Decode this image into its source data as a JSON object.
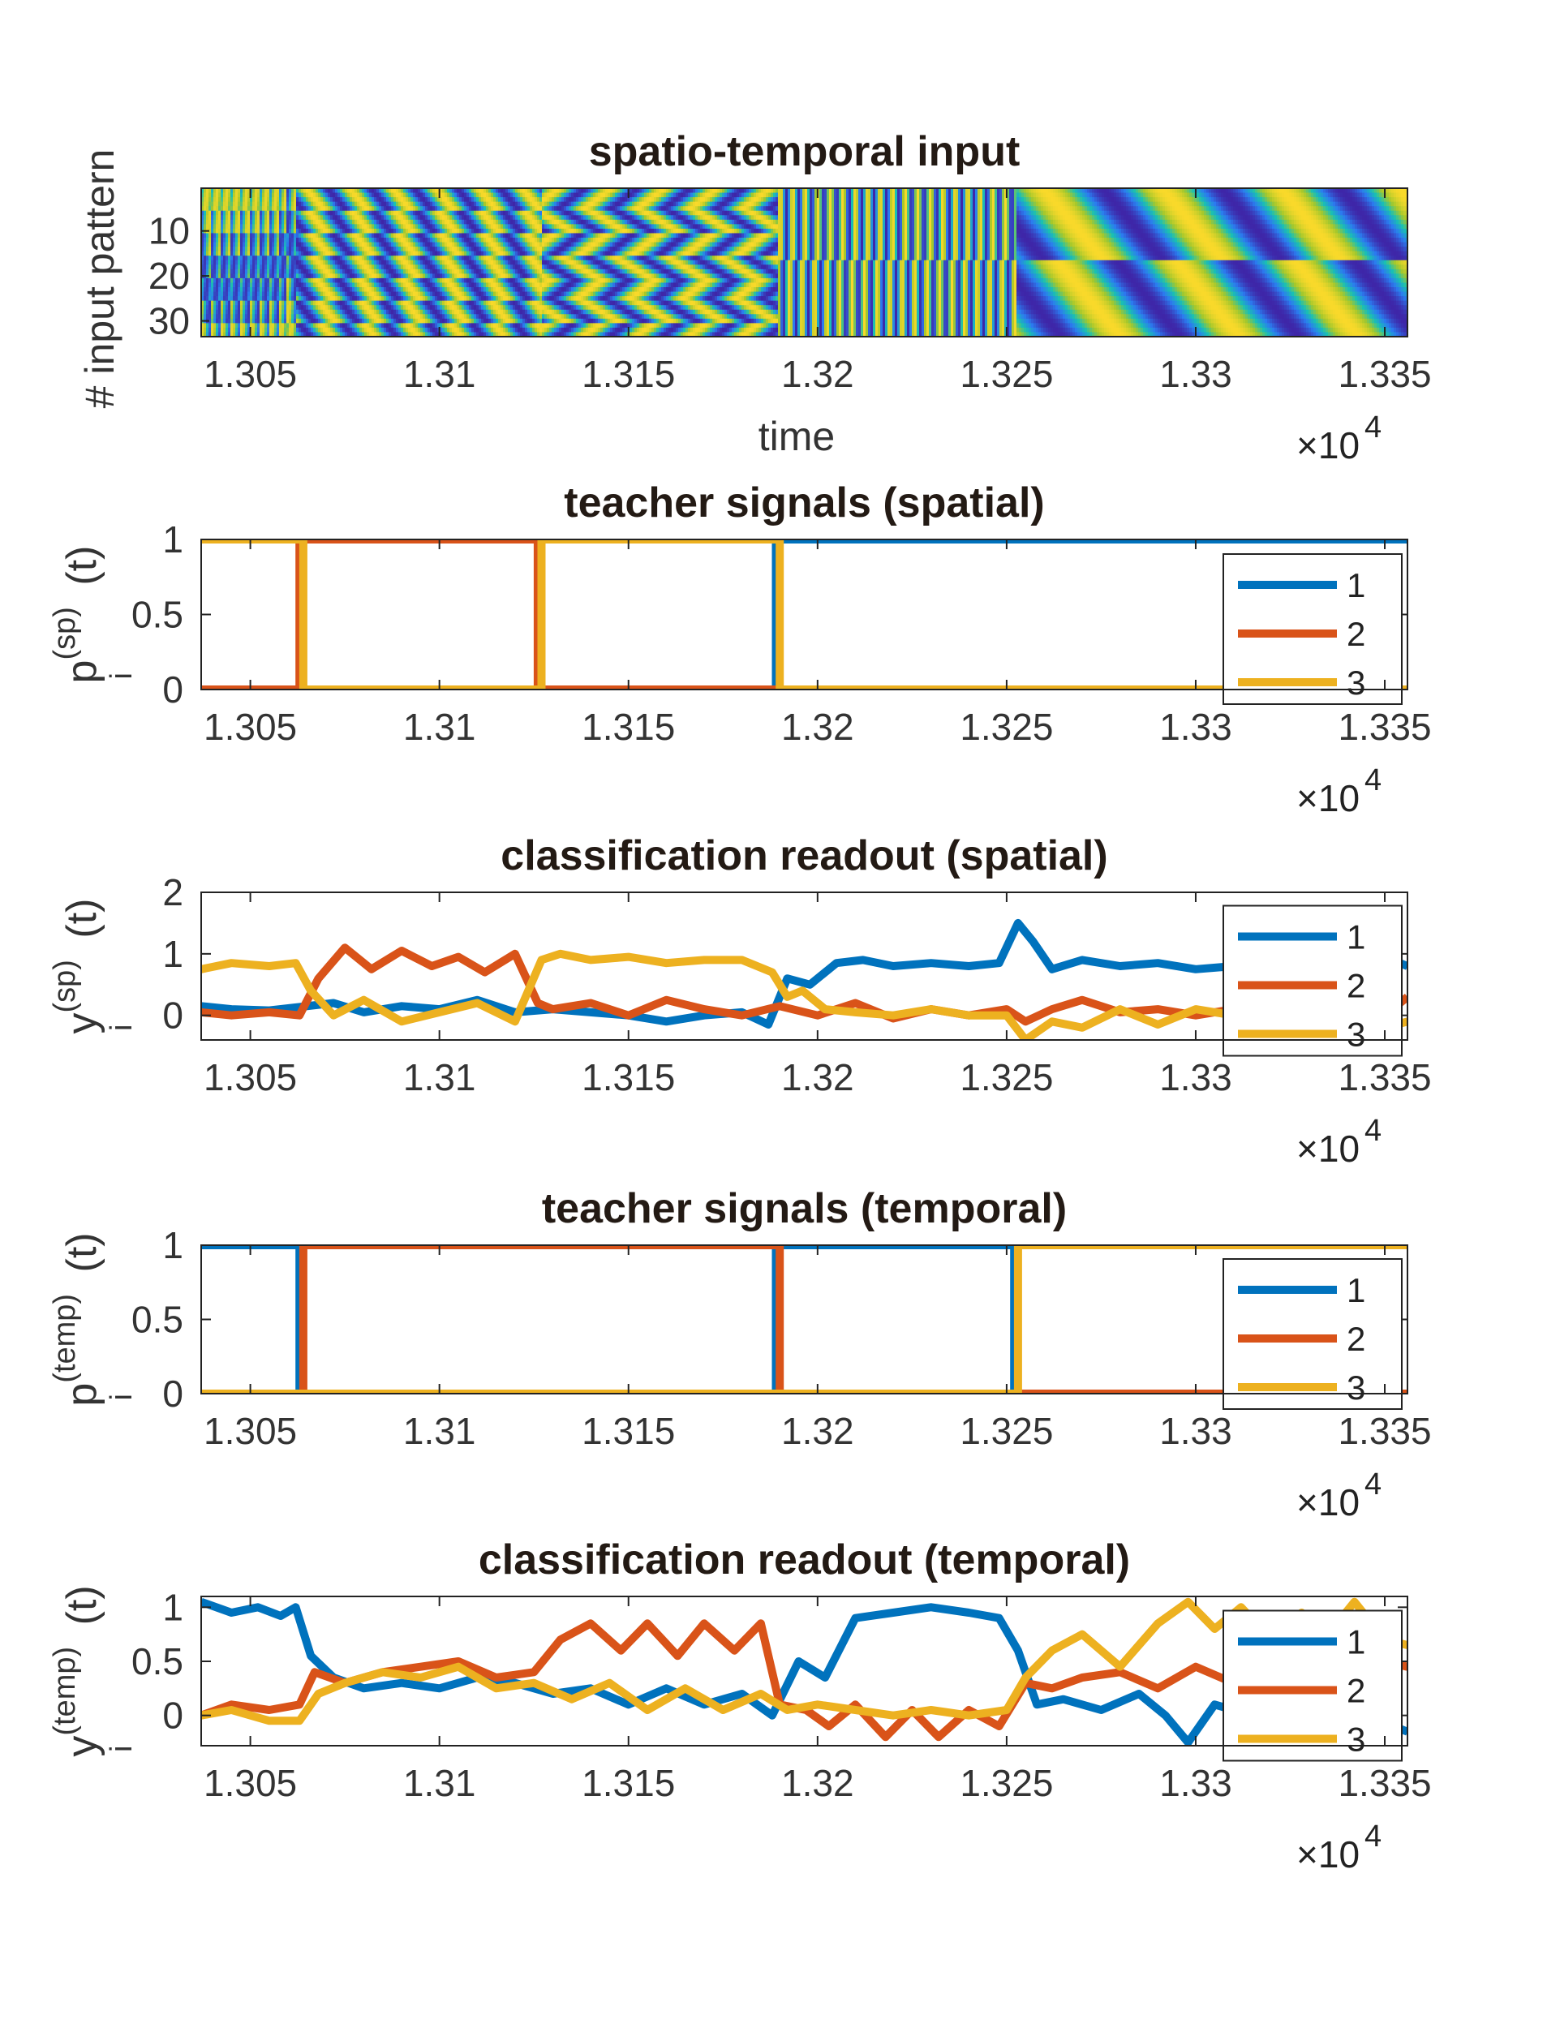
{
  "chart_data": [
    {
      "type": "heatmap",
      "title": "spatio-temporal input",
      "xlabel": "time",
      "ylabel": "# input pattern",
      "xlim": [
        1.3037,
        1.3356
      ],
      "ylim": [
        1,
        33
      ],
      "x_exponent": "4",
      "x_multiplier": "×10",
      "xticks": [
        "1.305",
        "1.31",
        "1.315",
        "1.32",
        "1.325",
        "1.33",
        "1.335"
      ],
      "yticks": [
        "10",
        "20",
        "30"
      ],
      "colormap": [
        "#3e26a8",
        "#2b7bf0",
        "#19c0b3",
        "#a6c82b",
        "#f9d92a"
      ],
      "segments": [
        {
          "start": 1.3037,
          "end": 1.3062,
          "pattern": "checker"
        },
        {
          "start": 1.3062,
          "end": 1.3127,
          "pattern": "stripes-a"
        },
        {
          "start": 1.3127,
          "end": 1.3189,
          "pattern": "checker-b"
        },
        {
          "start": 1.3189,
          "end": 1.3252,
          "pattern": "fast-stripes"
        },
        {
          "start": 1.3252,
          "end": 1.3356,
          "pattern": "slow-waves"
        }
      ]
    },
    {
      "type": "line",
      "title": "teacher signals (spatial)",
      "ylabel": "p",
      "ylabel_sub": "i",
      "ylabel_sup": "(sp)",
      "ylabel_arg": "(t)",
      "xlim": [
        1.3037,
        1.3356
      ],
      "ylim": [
        0,
        1
      ],
      "x_exponent": "4",
      "x_multiplier": "×10",
      "xticks": [
        "1.305",
        "1.31",
        "1.315",
        "1.32",
        "1.325",
        "1.33",
        "1.335"
      ],
      "yticks": [
        "0",
        "0.5",
        "1"
      ],
      "legend": "right",
      "series": [
        {
          "name": "1",
          "color": "#0072bd",
          "x": [
            1.3037,
            1.3189,
            1.3189,
            1.3356
          ],
          "y": [
            0,
            0,
            1,
            1
          ]
        },
        {
          "name": "2",
          "color": "#d95319",
          "x": [
            1.3037,
            1.3063,
            1.3063,
            1.3126,
            1.3126,
            1.3356
          ],
          "y": [
            0,
            0,
            1,
            1,
            0,
            0
          ]
        },
        {
          "name": "3",
          "color": "#edb120",
          "x": [
            1.3037,
            1.3064,
            1.3064,
            1.3127,
            1.3127,
            1.319,
            1.319,
            1.3356
          ],
          "y": [
            1,
            1,
            0,
            0,
            1,
            1,
            0,
            0
          ]
        }
      ]
    },
    {
      "type": "line",
      "title": "classification readout (spatial)",
      "ylabel": "y",
      "ylabel_sub": "i",
      "ylabel_sup": "(sp)",
      "ylabel_arg": "(t)",
      "xlim": [
        1.3037,
        1.3356
      ],
      "ylim": [
        -0.4,
        2
      ],
      "x_exponent": "4",
      "x_multiplier": "×10",
      "xticks": [
        "1.305",
        "1.31",
        "1.315",
        "1.32",
        "1.325",
        "1.33",
        "1.335"
      ],
      "yticks": [
        "0",
        "1",
        "2"
      ],
      "legend": "right",
      "series": [
        {
          "name": "1",
          "color": "#0072bd",
          "x": [
            1.3037,
            1.3045,
            1.3055,
            1.3065,
            1.3072,
            1.308,
            1.309,
            1.31,
            1.311,
            1.312,
            1.313,
            1.314,
            1.315,
            1.316,
            1.317,
            1.318,
            1.3187,
            1.3192,
            1.3198,
            1.3205,
            1.3212,
            1.322,
            1.323,
            1.324,
            1.3248,
            1.3253,
            1.3257,
            1.3262,
            1.327,
            1.328,
            1.329,
            1.33,
            1.331,
            1.332,
            1.333,
            1.334,
            1.3348,
            1.3356
          ],
          "y": [
            0.15,
            0.1,
            0.08,
            0.15,
            0.2,
            0.05,
            0.15,
            0.1,
            0.25,
            0.05,
            0.1,
            0.05,
            0.0,
            -0.1,
            0.0,
            0.05,
            -0.15,
            0.6,
            0.5,
            0.85,
            0.9,
            0.8,
            0.85,
            0.8,
            0.85,
            1.5,
            1.2,
            0.75,
            0.9,
            0.8,
            0.85,
            0.75,
            0.8,
            1.0,
            0.8,
            0.85,
            1.0,
            0.8
          ]
        },
        {
          "name": "2",
          "color": "#d95319",
          "x": [
            1.3037,
            1.3045,
            1.3055,
            1.3063,
            1.3068,
            1.3075,
            1.3082,
            1.309,
            1.3098,
            1.3105,
            1.3112,
            1.312,
            1.3126,
            1.313,
            1.314,
            1.315,
            1.316,
            1.317,
            1.318,
            1.319,
            1.32,
            1.321,
            1.322,
            1.323,
            1.324,
            1.325,
            1.3255,
            1.3262,
            1.327,
            1.328,
            1.329,
            1.33,
            1.331,
            1.332,
            1.333,
            1.334,
            1.335,
            1.3356
          ],
          "y": [
            0.05,
            0.0,
            0.05,
            0.0,
            0.6,
            1.1,
            0.75,
            1.05,
            0.8,
            0.95,
            0.7,
            1.0,
            0.2,
            0.1,
            0.2,
            0.0,
            0.25,
            0.1,
            0.0,
            0.15,
            0.0,
            0.2,
            -0.05,
            0.1,
            0.0,
            0.1,
            -0.1,
            0.1,
            0.25,
            0.05,
            0.1,
            0.0,
            0.1,
            0.1,
            0.2,
            0.05,
            0.0,
            0.3
          ]
        },
        {
          "name": "3",
          "color": "#edb120",
          "x": [
            1.3037,
            1.3045,
            1.3055,
            1.3062,
            1.3066,
            1.3072,
            1.308,
            1.309,
            1.31,
            1.311,
            1.312,
            1.3127,
            1.3132,
            1.314,
            1.315,
            1.316,
            1.317,
            1.318,
            1.3188,
            1.3192,
            1.3196,
            1.3202,
            1.321,
            1.322,
            1.323,
            1.324,
            1.325,
            1.3255,
            1.3262,
            1.327,
            1.328,
            1.329,
            1.33,
            1.331,
            1.332,
            1.333,
            1.334,
            1.335,
            1.3356
          ],
          "y": [
            0.75,
            0.85,
            0.8,
            0.85,
            0.4,
            0.0,
            0.25,
            -0.1,
            0.05,
            0.2,
            -0.1,
            0.9,
            1.0,
            0.9,
            0.95,
            0.85,
            0.9,
            0.9,
            0.7,
            0.3,
            0.4,
            0.1,
            0.05,
            0.0,
            0.1,
            0.0,
            0.0,
            -0.4,
            -0.1,
            -0.2,
            0.1,
            -0.15,
            0.1,
            0.0,
            0.05,
            0.0,
            0.1,
            -0.2,
            -0.1
          ]
        }
      ]
    },
    {
      "type": "line",
      "title": "teacher signals (temporal)",
      "ylabel": "p",
      "ylabel_sub": "i",
      "ylabel_sup": "(temp)",
      "ylabel_arg": "(t)",
      "xlim": [
        1.3037,
        1.3356
      ],
      "ylim": [
        0,
        1
      ],
      "x_exponent": "4",
      "x_multiplier": "×10",
      "xticks": [
        "1.305",
        "1.31",
        "1.315",
        "1.32",
        "1.325",
        "1.33",
        "1.335"
      ],
      "yticks": [
        "0",
        "0.5",
        "1"
      ],
      "legend": "right",
      "series": [
        {
          "name": "1",
          "color": "#0072bd",
          "x": [
            1.3037,
            1.3063,
            1.3063,
            1.3189,
            1.3189,
            1.3252,
            1.3252,
            1.3356
          ],
          "y": [
            1,
            1,
            0,
            0,
            1,
            1,
            0,
            0
          ]
        },
        {
          "name": "2",
          "color": "#d95319",
          "x": [
            1.3037,
            1.3064,
            1.3064,
            1.319,
            1.319,
            1.3356
          ],
          "y": [
            0,
            0,
            1,
            1,
            0,
            0
          ]
        },
        {
          "name": "3",
          "color": "#edb120",
          "x": [
            1.3037,
            1.3253,
            1.3253,
            1.3356
          ],
          "y": [
            0,
            0,
            1,
            1
          ]
        }
      ]
    },
    {
      "type": "line",
      "title": "classification readout (temporal)",
      "ylabel": "y",
      "ylabel_sub": "i",
      "ylabel_sup": "(temp)",
      "ylabel_arg": "(t)",
      "xlim": [
        1.3037,
        1.3356
      ],
      "ylim": [
        -0.28,
        1.1
      ],
      "x_exponent": "4",
      "x_multiplier": "×10",
      "xticks": [
        "1.305",
        "1.31",
        "1.315",
        "1.32",
        "1.325",
        "1.33",
        "1.335"
      ],
      "yticks": [
        "0",
        "0.5",
        "1"
      ],
      "legend": "right",
      "series": [
        {
          "name": "1",
          "color": "#0072bd",
          "x": [
            1.3037,
            1.3045,
            1.3052,
            1.3058,
            1.3062,
            1.3066,
            1.3072,
            1.308,
            1.309,
            1.31,
            1.311,
            1.312,
            1.313,
            1.314,
            1.315,
            1.316,
            1.317,
            1.318,
            1.3188,
            1.3195,
            1.3202,
            1.321,
            1.322,
            1.323,
            1.324,
            1.3248,
            1.3253,
            1.3258,
            1.3265,
            1.3275,
            1.3285,
            1.3292,
            1.3298,
            1.3305,
            1.3315,
            1.3325,
            1.3335,
            1.3345,
            1.3356
          ],
          "y": [
            1.05,
            0.95,
            1.0,
            0.92,
            1.0,
            0.55,
            0.35,
            0.25,
            0.3,
            0.25,
            0.35,
            0.3,
            0.2,
            0.25,
            0.1,
            0.25,
            0.1,
            0.2,
            0.0,
            0.5,
            0.35,
            0.9,
            0.95,
            1.0,
            0.95,
            0.9,
            0.6,
            0.1,
            0.15,
            0.05,
            0.2,
            0.0,
            -0.25,
            0.1,
            0.0,
            0.1,
            0.05,
            0.0,
            -0.15
          ]
        },
        {
          "name": "2",
          "color": "#d95319",
          "x": [
            1.3037,
            1.3045,
            1.3055,
            1.3063,
            1.3067,
            1.3075,
            1.3085,
            1.3095,
            1.3105,
            1.3115,
            1.3125,
            1.3132,
            1.314,
            1.3148,
            1.3155,
            1.3163,
            1.317,
            1.3178,
            1.3185,
            1.319,
            1.3197,
            1.3203,
            1.321,
            1.3218,
            1.3225,
            1.3232,
            1.324,
            1.3248,
            1.3255,
            1.3262,
            1.327,
            1.328,
            1.329,
            1.33,
            1.331,
            1.332,
            1.333,
            1.334,
            1.335,
            1.3356
          ],
          "y": [
            0.0,
            0.1,
            0.05,
            0.1,
            0.4,
            0.3,
            0.4,
            0.45,
            0.5,
            0.35,
            0.4,
            0.7,
            0.85,
            0.6,
            0.85,
            0.55,
            0.85,
            0.6,
            0.85,
            0.1,
            0.05,
            -0.1,
            0.1,
            -0.2,
            0.05,
            -0.2,
            0.05,
            -0.1,
            0.3,
            0.25,
            0.35,
            0.4,
            0.25,
            0.45,
            0.3,
            0.05,
            -0.1,
            0.3,
            0.5,
            0.45
          ]
        },
        {
          "name": "3",
          "color": "#edb120",
          "x": [
            1.3037,
            1.3045,
            1.3055,
            1.3063,
            1.3068,
            1.3075,
            1.3085,
            1.3095,
            1.3105,
            1.3115,
            1.3125,
            1.3135,
            1.3145,
            1.3155,
            1.3165,
            1.3175,
            1.3185,
            1.3192,
            1.32,
            1.321,
            1.322,
            1.323,
            1.324,
            1.325,
            1.3255,
            1.3262,
            1.327,
            1.328,
            1.329,
            1.3298,
            1.3305,
            1.3312,
            1.332,
            1.3328,
            1.3335,
            1.3342,
            1.335,
            1.3356
          ],
          "y": [
            0.0,
            0.05,
            -0.05,
            -0.05,
            0.2,
            0.3,
            0.4,
            0.35,
            0.45,
            0.25,
            0.3,
            0.15,
            0.3,
            0.05,
            0.25,
            0.05,
            0.2,
            0.05,
            0.1,
            0.05,
            0.0,
            0.05,
            0.0,
            0.05,
            0.35,
            0.6,
            0.75,
            0.45,
            0.85,
            1.05,
            0.8,
            1.0,
            0.7,
            0.95,
            0.75,
            1.05,
            0.7,
            0.65
          ]
        }
      ]
    }
  ]
}
